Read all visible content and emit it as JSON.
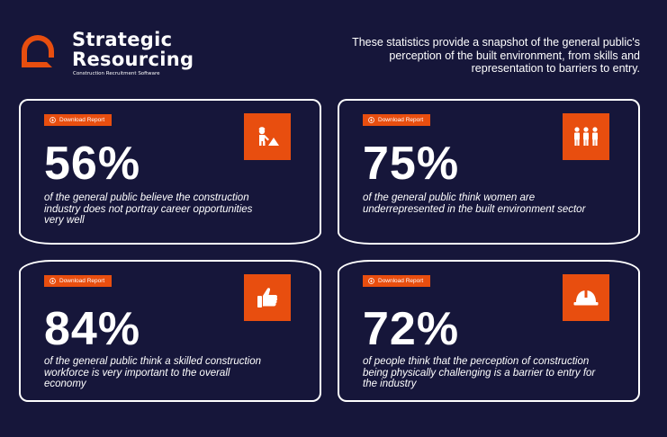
{
  "brand": {
    "name_line1": "Strategic",
    "name_line2": "Resourcing",
    "tagline": "Construction Recruitment Software",
    "accent_color": "#e84e0f",
    "background_color": "#16163a"
  },
  "intro": "These statistics provide a snapshot of the general public's perception of the built environment, from skills and representation to barriers to entry.",
  "cards": [
    {
      "button_label": "Download Report",
      "icon": "construction-worker-icon",
      "stat": "56%",
      "description": "of the general public believe the construction industry does not portray career opportunities very well"
    },
    {
      "button_label": "Download Report",
      "icon": "people-group-icon",
      "stat": "75%",
      "description": "of the general public think women are underrepresented in the built environment sector"
    },
    {
      "button_label": "Download Report",
      "icon": "thumbs-up-icon",
      "stat": "84%",
      "description": "of the general public think a skilled construction workforce is very important to the overall economy"
    },
    {
      "button_label": "Download Report",
      "icon": "hard-hat-icon",
      "stat": "72%",
      "description": "of people think that the perception of construction being physically challenging is a barrier to entry for the industry"
    }
  ]
}
